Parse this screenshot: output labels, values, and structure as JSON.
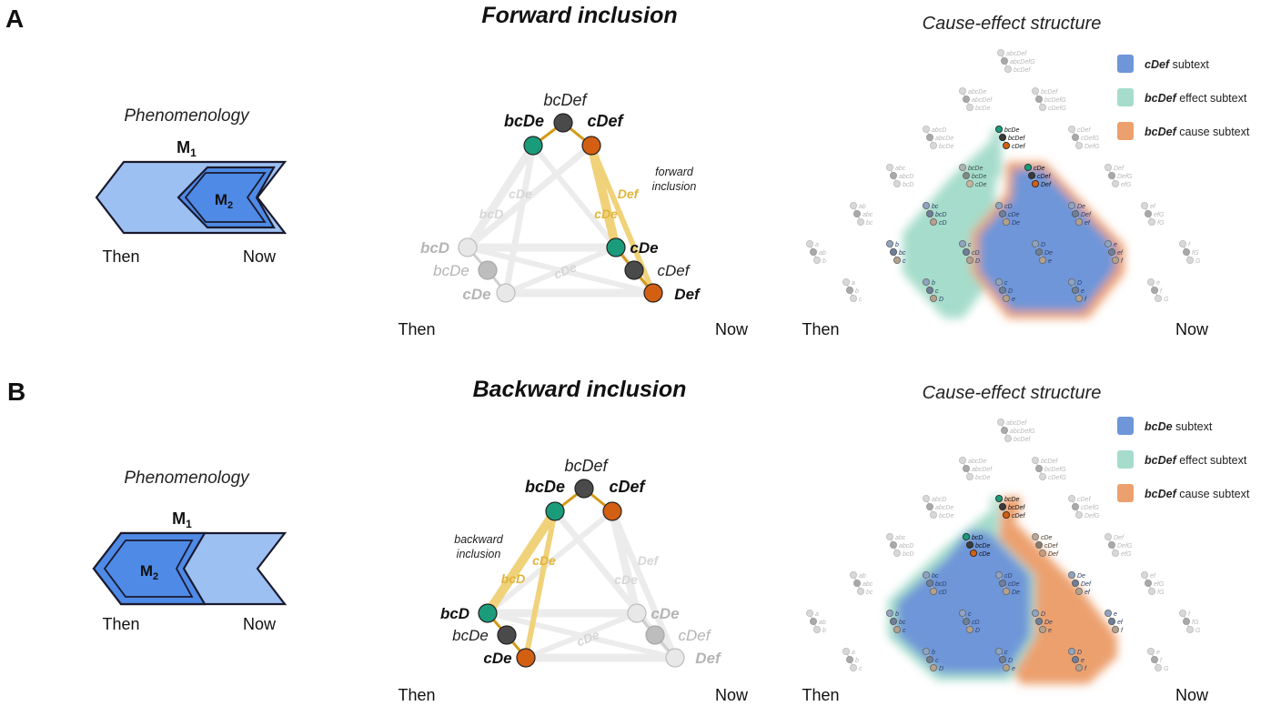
{
  "panels": [
    {
      "letter": "A",
      "title": "Forward inclusion",
      "phenomenology": {
        "title": "Phenomenology",
        "outer_label": "M",
        "outer_sub": "1",
        "inner_label": "M",
        "inner_sub": "2",
        "then": "Then",
        "now": "Now",
        "inner_position": "right"
      },
      "graph": {
        "then": "Then",
        "now": "Now",
        "top_cluster": {
          "label": "bcDef",
          "left": "bcDe",
          "right": "cDef"
        },
        "left_cluster": {
          "top": "bcD",
          "mid": "bcDe",
          "bottom": "cDe"
        },
        "right_cluster": {
          "top": "cDe",
          "mid": "cDef",
          "bottom": "Def"
        },
        "faded_edge_labels": [
          "cDe",
          "bcD",
          "cDe"
        ],
        "highlight_edge_labels": [
          "Def",
          "cDe"
        ],
        "annotation": "forward\ninclusion",
        "highlight_side": "right"
      },
      "ces": {
        "title": "Cause-effect structure",
        "then": "Then",
        "now": "Now",
        "legend": [
          {
            "bold": "cDef",
            "text": "subtext",
            "color": "#6e96d8"
          },
          {
            "bold": "bcDef",
            "text": "effect subtext",
            "color": "#a6dccb"
          },
          {
            "bold": "bcDef",
            "text": "cause subtext",
            "color": "#eca06e"
          }
        ]
      }
    },
    {
      "letter": "B",
      "title": "Backward inclusion",
      "phenomenology": {
        "title": "Phenomenology",
        "outer_label": "M",
        "outer_sub": "1",
        "inner_label": "M",
        "inner_sub": "2",
        "then": "Then",
        "now": "Now",
        "inner_position": "left"
      },
      "graph": {
        "then": "Then",
        "now": "Now",
        "top_cluster": {
          "label": "bcDef",
          "left": "bcDe",
          "right": "cDef"
        },
        "left_cluster": {
          "top": "bcD",
          "mid": "bcDe",
          "bottom": "cDe"
        },
        "right_cluster": {
          "top": "cDe",
          "mid": "cDef",
          "bottom": "Def"
        },
        "faded_edge_labels": [
          "Def",
          "cDe",
          "cDe"
        ],
        "highlight_edge_labels": [
          "cDe",
          "bcD"
        ],
        "annotation": "backward\ninclusion",
        "highlight_side": "left"
      },
      "ces": {
        "title": "Cause-effect structure",
        "then": "Then",
        "now": "Now",
        "legend": [
          {
            "bold": "bcDe",
            "text": "subtext",
            "color": "#6e96d8"
          },
          {
            "bold": "bcDef",
            "text": "effect subtext",
            "color": "#a6dccb"
          },
          {
            "bold": "bcDef",
            "text": "cause subtext",
            "color": "#eca06e"
          }
        ]
      }
    }
  ],
  "ces_grid": {
    "rows": [
      {
        "y": 0,
        "cells": [
          [
            "abcDef",
            "abcDefG",
            "bcDef"
          ]
        ]
      },
      {
        "y": 1,
        "cells": [
          [
            "abcDe",
            "abcDef",
            "bcDe"
          ],
          [
            "bcDef",
            "bcDefG",
            "cDefG"
          ]
        ]
      },
      {
        "y": 2,
        "cells": [
          [
            "abcD",
            "abcDe",
            "bcDe"
          ],
          [
            "cDef",
            "cDefG",
            "DefG"
          ]
        ]
      },
      {
        "y": 3,
        "cells": [
          [
            "abc",
            "abcD",
            "bcD"
          ],
          [
            "Def",
            "DefG",
            "efG"
          ]
        ]
      },
      {
        "y": 4,
        "cells": [
          [
            "ab",
            "abc",
            "bc"
          ],
          [
            "ef",
            "efG",
            "fG"
          ]
        ]
      },
      {
        "y": 5,
        "cells": [
          [
            "a",
            "ab",
            "b"
          ],
          [
            "f",
            "fG",
            "G"
          ]
        ]
      },
      {
        "y": 6,
        "cells": [
          [
            "a",
            "b",
            "c"
          ],
          [
            "e",
            "f",
            "G"
          ]
        ]
      }
    ],
    "A": {
      "top_trio": [
        "bcDe",
        "bcDef",
        "cDef"
      ],
      "second_trio": [
        "cDe",
        "cDef",
        "Def"
      ],
      "left_trio": [
        "bcDe",
        "bcDe",
        "cDe"
      ],
      "inner_rows": [
        [
          [
            "bc",
            "bcD",
            "cD"
          ],
          [
            "cD",
            "cDe",
            "De"
          ],
          [
            "De",
            "Def",
            "ef"
          ]
        ],
        [
          [
            "b",
            "bc",
            "c"
          ],
          [
            "c",
            "cD",
            "D"
          ],
          [
            "D",
            "De",
            "e"
          ],
          [
            "e",
            "ef",
            "f"
          ]
        ],
        [
          [
            "b",
            "c",
            "D"
          ],
          [
            "c",
            "D",
            "e"
          ],
          [
            "D",
            "e",
            "f"
          ]
        ]
      ]
    },
    "B": {
      "top_trio": [
        "bcDe",
        "bcDef",
        "cDef"
      ],
      "second_trio": [
        "bcD",
        "bcDe",
        "cDe"
      ],
      "right_trio": [
        "cDe",
        "cDef",
        "Def"
      ],
      "inner_rows": [
        [
          [
            "bc",
            "bcD",
            "cD"
          ],
          [
            "cD",
            "cDe",
            "De"
          ],
          [
            "De",
            "Def",
            "ef"
          ]
        ],
        [
          [
            "b",
            "bc",
            "c"
          ],
          [
            "c",
            "cD",
            "D"
          ],
          [
            "D",
            "De",
            "e"
          ],
          [
            "e",
            "ef",
            "f"
          ]
        ],
        [
          [
            "b",
            "c",
            "D"
          ],
          [
            "c",
            "D",
            "e"
          ],
          [
            "D",
            "e",
            "f"
          ]
        ]
      ]
    }
  }
}
